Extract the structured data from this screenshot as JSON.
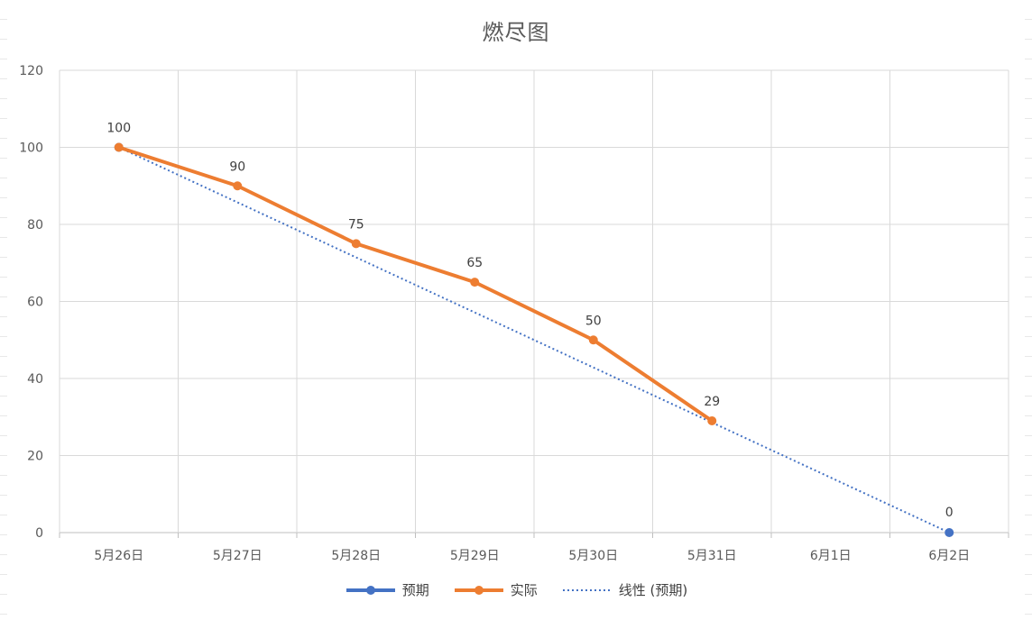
{
  "chart_data": {
    "type": "line",
    "title": "燃尽图",
    "categories": [
      "5月26日",
      "5月27日",
      "5月28日",
      "5月29日",
      "5月30日",
      "5月31日",
      "6月1日",
      "6月2日"
    ],
    "ylim": [
      0,
      120
    ],
    "yticks": [
      0,
      20,
      40,
      60,
      80,
      100,
      120
    ],
    "grid": true,
    "legend_position": "bottom",
    "series": [
      {
        "name": "预期",
        "color": "#4472C4",
        "values": [
          100,
          null,
          null,
          null,
          null,
          null,
          null,
          0
        ],
        "labels": [
          "100",
          "",
          "",
          "",
          "",
          "",
          "",
          "0"
        ]
      },
      {
        "name": "实际",
        "color": "#ED7D31",
        "values": [
          100,
          90,
          75,
          65,
          50,
          29,
          null,
          null
        ],
        "labels": [
          "100",
          "90",
          "75",
          "65",
          "50",
          "29",
          "",
          ""
        ]
      }
    ],
    "trendline": {
      "name": "线性 (预期)",
      "color": "#4472C4",
      "style": "dotted",
      "from": {
        "x": "5月26日",
        "y": 100
      },
      "to": {
        "x": "6月2日",
        "y": 0
      }
    }
  }
}
